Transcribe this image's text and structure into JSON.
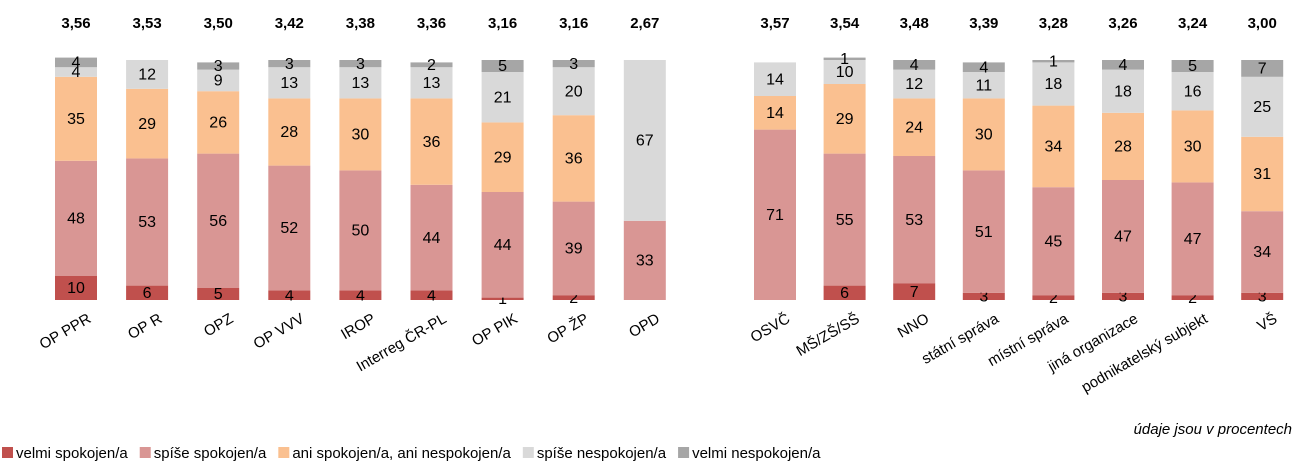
{
  "chart_data": [
    {
      "type": "stacked_bar",
      "categories": [
        "OP PPR",
        "OP R",
        "OPZ",
        "OP VVV",
        "IROP",
        "Interreg ČR-PL",
        "OP PIK",
        "OP ŽP",
        "OPD"
      ],
      "means": {
        "values": [
          3.56,
          3.53,
          3.5,
          3.42,
          3.38,
          3.36,
          3.16,
          3.16,
          2.67
        ],
        "value_labels": [
          "3,56",
          "3,53",
          "3,50",
          "3,42",
          "3,38",
          "3,36",
          "3,16",
          "3,16",
          "2,67"
        ]
      },
      "ylim": [
        0,
        100
      ],
      "series": [
        {
          "name": "velmi spokojen/a",
          "color": "#c0504d",
          "values": [
            10,
            6,
            5,
            4,
            4,
            4,
            1,
            2,
            null
          ]
        },
        {
          "name": "spíše spokojen/a",
          "color": "#d99694",
          "values": [
            48,
            53,
            56,
            52,
            50,
            44,
            44,
            39,
            33
          ]
        },
        {
          "name": "ani spokojen/a, ani nespokojen/a",
          "color": "#fac090",
          "values": [
            35,
            29,
            26,
            28,
            30,
            36,
            29,
            36,
            null
          ]
        },
        {
          "name": "spíše nespokojen/a",
          "color": "#d9d9d9",
          "values": [
            4,
            12,
            9,
            13,
            13,
            13,
            21,
            20,
            67
          ]
        },
        {
          "name": "velmi nespokojen/a",
          "color": "#a6a6a6",
          "values": [
            4,
            null,
            3,
            3,
            3,
            2,
            5,
            3,
            null
          ]
        }
      ]
    },
    {
      "type": "stacked_bar",
      "categories": [
        "OSVČ",
        "MŠ/ZŠ/SŠ",
        "NNO",
        "státní správa",
        "místní správa",
        "jiná organizace",
        "podnikatelský subjekt",
        "VŠ"
      ],
      "means": {
        "values": [
          3.57,
          3.54,
          3.48,
          3.39,
          3.28,
          3.26,
          3.24,
          3.0
        ],
        "value_labels": [
          "3,57",
          "3,54",
          "3,48",
          "3,39",
          "3,28",
          "3,26",
          "3,24",
          "3,00"
        ]
      },
      "ylim": [
        0,
        100
      ],
      "annotation": "údaje jsou v procentech",
      "series": [
        {
          "name": "velmi spokojen/a",
          "color": "#c0504d",
          "values": [
            null,
            6,
            7,
            3,
            2,
            3,
            2,
            3
          ]
        },
        {
          "name": "spíše spokojen/a",
          "color": "#d99694",
          "values": [
            71,
            55,
            53,
            51,
            45,
            47,
            47,
            34
          ]
        },
        {
          "name": "ani spokojen/a, ani nespokojen/a",
          "color": "#fac090",
          "values": [
            14,
            29,
            24,
            30,
            34,
            28,
            30,
            31
          ]
        },
        {
          "name": "spíše nespokojen/a",
          "color": "#d9d9d9",
          "values": [
            14,
            10,
            12,
            11,
            18,
            18,
            16,
            25
          ]
        },
        {
          "name": "velmi nespokojen/a",
          "color": "#a6a6a6",
          "values": [
            null,
            1,
            4,
            4,
            1,
            4,
            5,
            7
          ]
        }
      ]
    }
  ]
}
